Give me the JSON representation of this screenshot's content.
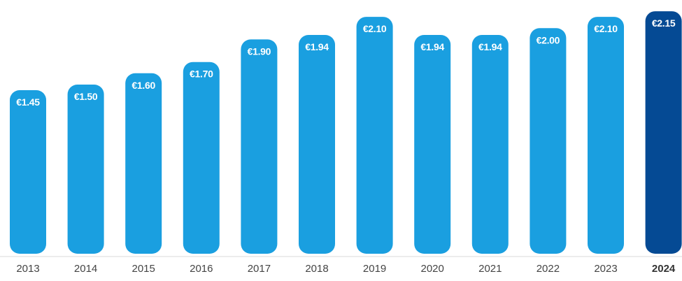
{
  "chart_data": {
    "type": "bar",
    "categories": [
      "2013",
      "2014",
      "2015",
      "2016",
      "2017",
      "2018",
      "2019",
      "2020",
      "2021",
      "2022",
      "2023",
      "2024"
    ],
    "values": [
      1.45,
      1.5,
      1.6,
      1.7,
      1.9,
      1.94,
      2.1,
      1.94,
      1.94,
      2.0,
      2.1,
      2.15
    ],
    "value_labels": [
      "€1.45",
      "€1.50",
      "€1.60",
      "€1.70",
      "€1.90",
      "€1.94",
      "€2.10",
      "€1.94",
      "€1.94",
      "€2.00",
      "€2.10",
      "€2.15"
    ],
    "highlight_category": "2024",
    "colors": {
      "bar": "#1a9fe0",
      "highlight_bar": "#054a94",
      "value_text": "#ffffff",
      "axis_line": "#d9d9d9"
    },
    "title": "",
    "xlabel": "",
    "ylabel": "",
    "ylim": [
      0,
      2.2
    ],
    "grid": false,
    "legend": "none"
  }
}
